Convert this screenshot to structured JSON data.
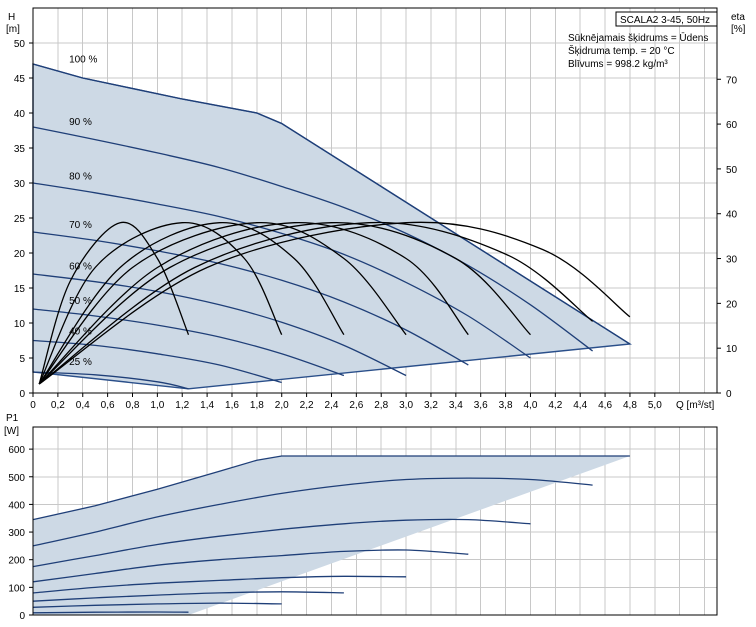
{
  "info": {
    "model": "SCALA2 3-45, 50Hz",
    "fluid": "Sūknējamais šķidrums = Ūdens",
    "temp": "Šķidruma temp. = 20 °C",
    "density": "Blīvums = 998.2 kg/m³"
  },
  "top": {
    "ylabel_line1": "H",
    "ylabel_line2": "[m]",
    "y2label_line1": "eta",
    "y2label_line2": "[%]",
    "xlabel": "Q [m³/st]",
    "x_ticks": [
      "0",
      "0,2",
      "0,4",
      "0,6",
      "0,8",
      "1,0",
      "1,2",
      "1,4",
      "1,6",
      "1,8",
      "2,0",
      "2,2",
      "2,4",
      "2,6",
      "2,8",
      "3,0",
      "3,2",
      "3,4",
      "3,6",
      "3,8",
      "4,0",
      "4,2",
      "4,4",
      "4,6",
      "4,8",
      "5,0"
    ],
    "y_ticks": [
      "0",
      "5",
      "10",
      "15",
      "20",
      "25",
      "30",
      "35",
      "40",
      "45",
      "50"
    ],
    "y2_ticks": [
      "0",
      "10",
      "20",
      "30",
      "40",
      "50",
      "60",
      "70"
    ]
  },
  "bottom": {
    "ylabel_line1": "P1",
    "ylabel_line2": "[W]",
    "y_ticks": [
      "0",
      "100",
      "200",
      "300",
      "400",
      "500",
      "600"
    ]
  },
  "chart_data": [
    {
      "type": "line",
      "xlabel": "Q [m³/st]",
      "ylabel": "H [m]",
      "y2label": "eta [%]",
      "xlim": [
        0,
        5.5
      ],
      "ylim": [
        0,
        55
      ],
      "y2lim": [
        0,
        85.9
      ],
      "envelope_fill": "#cdd9e5",
      "curve_color": "#1f3f78",
      "series": [
        {
          "name": "100 %",
          "x": [
            0,
            0.4,
            1.2,
            1.8,
            2.0,
            4.8
          ],
          "y": [
            47,
            45,
            42,
            40,
            38.5,
            7
          ]
        },
        {
          "name": "90 %",
          "x": [
            0,
            0.5,
            1.0,
            1.5,
            2.0,
            2.5,
            3.0,
            3.5,
            4.0,
            4.5
          ],
          "y": [
            38,
            36.2,
            34.3,
            32.2,
            29.5,
            26.5,
            22.8,
            18.2,
            12.6,
            6
          ]
        },
        {
          "name": "80 %",
          "x": [
            0,
            0.5,
            1.0,
            1.5,
            2.0,
            2.5,
            3.0,
            3.5,
            4.0
          ],
          "y": [
            30,
            28.6,
            27,
            25.2,
            22.8,
            19.8,
            15.8,
            11,
            5
          ]
        },
        {
          "name": "70 %",
          "x": [
            0,
            0.5,
            1.0,
            1.5,
            2.0,
            2.5,
            3.0,
            3.5
          ],
          "y": [
            23,
            21.8,
            20.3,
            18.5,
            16.1,
            13,
            9,
            4
          ]
        },
        {
          "name": "60 %",
          "x": [
            0,
            0.5,
            1.0,
            1.5,
            2.0,
            2.5,
            3.0
          ],
          "y": [
            17,
            15.9,
            14.5,
            12.6,
            10.1,
            6.8,
            2.5
          ]
        },
        {
          "name": "50 %",
          "x": [
            0,
            0.5,
            1.0,
            1.5,
            2.0,
            2.5
          ],
          "y": [
            12,
            11,
            9.7,
            8,
            5.6,
            2.5
          ]
        },
        {
          "name": "40 %",
          "x": [
            0,
            0.5,
            1.0,
            1.5,
            2.0
          ],
          "y": [
            7.5,
            6.8,
            5.6,
            4,
            1.5
          ]
        },
        {
          "name": "25 %",
          "x": [
            0,
            0.5,
            1.0,
            1.25
          ],
          "y": [
            3,
            2.6,
            1.6,
            0.6
          ]
        }
      ],
      "efficiency_curves": [
        {
          "x": [
            0.05,
            0.3,
            0.7,
            1.0,
            1.25
          ],
          "eta": [
            2,
            25,
            38,
            30,
            13
          ]
        },
        {
          "x": [
            0.05,
            0.5,
            1.2,
            1.7,
            2.0
          ],
          "eta": [
            2,
            28,
            38,
            30,
            13
          ]
        },
        {
          "x": [
            0.05,
            0.7,
            1.5,
            2.1,
            2.5
          ],
          "eta": [
            2,
            28,
            38,
            30,
            13
          ]
        },
        {
          "x": [
            0.05,
            0.8,
            1.8,
            2.5,
            3.0
          ],
          "eta": [
            2,
            28,
            38,
            30,
            13
          ]
        },
        {
          "x": [
            0.05,
            1.0,
            2.1,
            3.0,
            3.5
          ],
          "eta": [
            2,
            28,
            38,
            30,
            13
          ]
        },
        {
          "x": [
            0.05,
            1.1,
            2.4,
            3.4,
            4.0
          ],
          "eta": [
            2,
            28,
            38,
            30,
            13
          ]
        },
        {
          "x": [
            0.05,
            1.3,
            2.7,
            3.8,
            4.5
          ],
          "eta": [
            2,
            28,
            38,
            31,
            16
          ]
        },
        {
          "x": [
            0.05,
            1.4,
            3.0,
            4.1,
            4.8
          ],
          "eta": [
            2,
            28,
            38,
            32,
            17
          ]
        }
      ]
    },
    {
      "type": "line",
      "ylabel": "P1 [W]",
      "xlim": [
        0,
        5.5
      ],
      "ylim": [
        0,
        680
      ],
      "series": [
        {
          "name": "100 %",
          "x": [
            0,
            0.5,
            1.0,
            1.5,
            1.8,
            2.0,
            4.8
          ],
          "y": [
            345,
            395,
            455,
            520,
            560,
            575,
            575
          ]
        },
        {
          "name": "90 %",
          "x": [
            0,
            0.5,
            1.0,
            1.5,
            2.0,
            2.5,
            3.0,
            3.5,
            4.0,
            4.5
          ],
          "y": [
            250,
            300,
            355,
            400,
            440,
            470,
            490,
            495,
            490,
            470
          ]
        },
        {
          "name": "80 %",
          "x": [
            0,
            0.5,
            1.0,
            1.5,
            2.0,
            2.5,
            3.0,
            3.5,
            4.0
          ],
          "y": [
            175,
            215,
            255,
            285,
            310,
            330,
            343,
            345,
            330
          ]
        },
        {
          "name": "70 %",
          "x": [
            0,
            0.5,
            1.0,
            1.5,
            2.0,
            2.5,
            3.0,
            3.5
          ],
          "y": [
            120,
            150,
            180,
            200,
            215,
            230,
            235,
            220
          ]
        },
        {
          "name": "60 %",
          "x": [
            0,
            0.5,
            1.0,
            1.5,
            2.0,
            2.5,
            3.0
          ],
          "y": [
            80,
            100,
            115,
            125,
            135,
            140,
            138
          ]
        },
        {
          "name": "50 %",
          "x": [
            0,
            0.5,
            1.0,
            1.5,
            2.0,
            2.5
          ],
          "y": [
            50,
            62,
            72,
            80,
            84,
            80
          ]
        },
        {
          "name": "40 %",
          "x": [
            0,
            0.5,
            1.0,
            1.5,
            2.0
          ],
          "y": [
            28,
            35,
            40,
            43,
            40
          ]
        },
        {
          "name": "25 %",
          "x": [
            0,
            0.5,
            1.0,
            1.25
          ],
          "y": [
            8,
            10,
            11,
            10
          ]
        }
      ],
      "envelope_fill": "#cdd9e5"
    }
  ]
}
